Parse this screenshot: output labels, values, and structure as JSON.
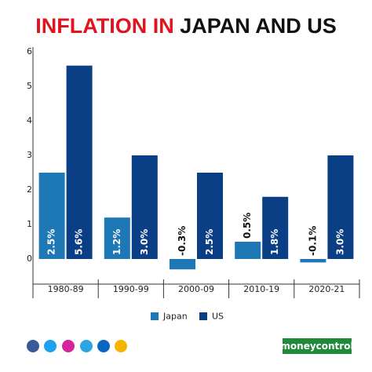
{
  "chart_data": {
    "type": "bar",
    "title": {
      "highlight": "INFLATION IN",
      "rest": "JAPAN AND US"
    },
    "categories": [
      "1980-89",
      "1990-99",
      "2000-09",
      "2010-19",
      "2020-21"
    ],
    "series": [
      {
        "name": "Japan",
        "color": "#1f78b6",
        "values": [
          2.5,
          1.2,
          -0.3,
          0.5,
          -0.1
        ],
        "value_labels": [
          "2.5%",
          "1.2%",
          "-0.3%",
          "0.5%",
          "-0.1%"
        ]
      },
      {
        "name": "US",
        "color": "#0b3f85",
        "values": [
          5.6,
          3.0,
          2.5,
          1.8,
          3.0
        ],
        "value_labels": [
          "5.6%",
          "3.0%",
          "2.5%",
          "1.8%",
          "3.0%"
        ]
      }
    ],
    "ylim": [
      -0.5,
      6
    ],
    "yticks": [
      0,
      1,
      2,
      3,
      4,
      5,
      6
    ],
    "grid": false,
    "legend": "bottom"
  },
  "brand": "moneycontrol"
}
